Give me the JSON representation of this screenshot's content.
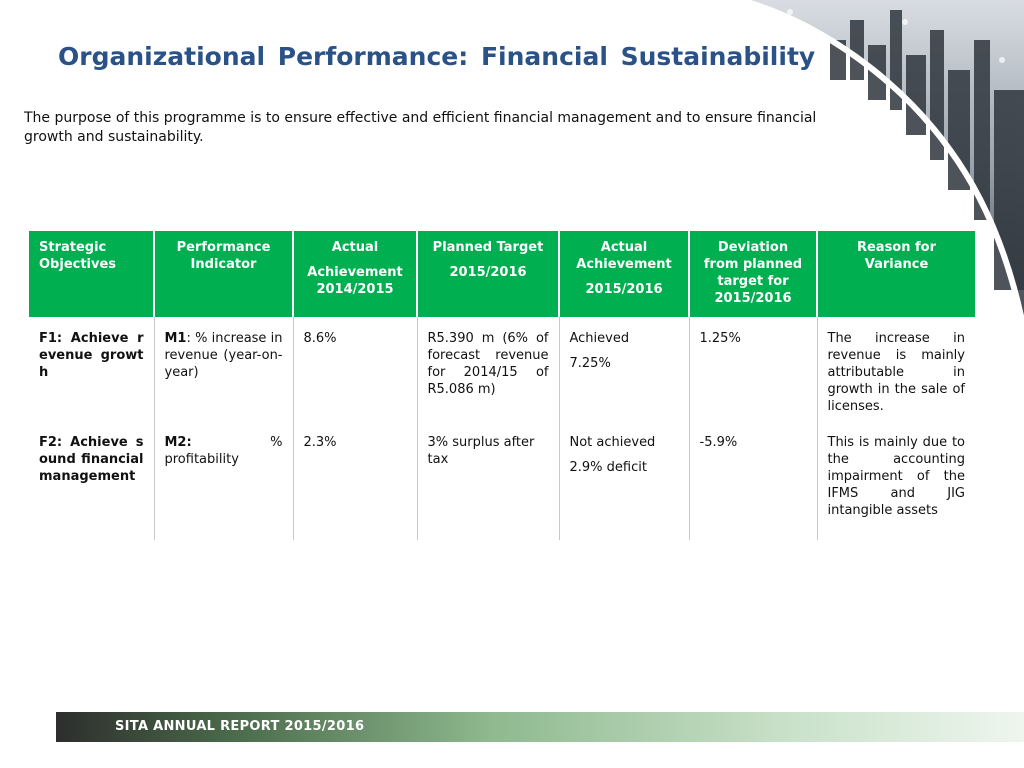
{
  "title": "Organizational Performance: Financial Sustainability",
  "intro": "The purpose of this programme is to ensure effective and efficient financial management and to ensure financial growth and sustainability.",
  "table": {
    "headers": {
      "col1": "Strategic Objectives",
      "col2": "Performance Indicator",
      "col3_line1": "Actual",
      "col3_line2": "Achievement 2014/2015",
      "col4_line1": "Planned Target",
      "col4_line2": "2015/2016",
      "col5_line1": "Actual Achievement",
      "col5_line2": "2015/2016",
      "col6": "Deviation from planned target for 2015/2016",
      "col7": "Reason for Variance"
    },
    "rows": [
      {
        "objective": "F1: Achieve revenue growth",
        "indicator_code": "M1",
        "indicator_text": ": % increase in revenue (year-on-year)",
        "actual_2014": "8.6%",
        "planned_target": "R5.390 m (6% of forecast revenue for 2014/15 of R5.086 m)",
        "actual_status": "Achieved",
        "actual_value": "7.25%",
        "deviation": "1.25%",
        "reason": "The increase in revenue is mainly attributable in growth in the sale of licenses."
      },
      {
        "objective": "F2: Achieve sound financial management",
        "indicator_code": "M2:",
        "indicator_text": " % profitability",
        "actual_2014": "2.3%",
        "planned_target": "3% surplus after tax",
        "actual_status": "Not achieved",
        "actual_value": "2.9% deficit",
        "deviation": "-5.9%",
        "reason": "This is mainly due to the accounting impairment of the IFMS and JIG intangible assets"
      }
    ]
  },
  "footer": "SITA ANNUAL REPORT 2015/2016",
  "colors": {
    "title": "#2a5286",
    "header_bg": "#00b050",
    "header_text": "#ffffff"
  }
}
